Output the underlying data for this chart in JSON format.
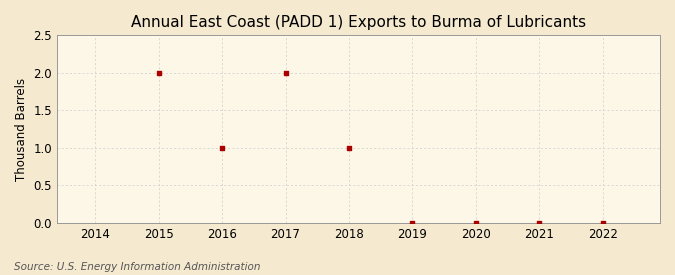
{
  "title": "Annual East Coast (PADD 1) Exports to Burma of Lubricants",
  "ylabel": "Thousand Barrels",
  "source": "Source: U.S. Energy Information Administration",
  "years": [
    2014,
    2015,
    2016,
    2017,
    2018,
    2019,
    2020,
    2021,
    2022
  ],
  "values": [
    null,
    2.0,
    1.0,
    2.0,
    1.0,
    0.0,
    0.0,
    0.0,
    0.0
  ],
  "xlim": [
    2013.4,
    2022.9
  ],
  "ylim": [
    0.0,
    2.5
  ],
  "yticks": [
    0.0,
    0.5,
    1.0,
    1.5,
    2.0,
    2.5
  ],
  "xticks": [
    2014,
    2015,
    2016,
    2017,
    2018,
    2019,
    2020,
    2021,
    2022
  ],
  "marker_color": "#aa0000",
  "marker": "s",
  "marker_size": 3.5,
  "bg_color": "#f5ead0",
  "plot_bg_color": "#fdf7e8",
  "grid_color": "#cccccc",
  "title_fontsize": 11,
  "label_fontsize": 8.5,
  "tick_fontsize": 8.5,
  "source_fontsize": 7.5
}
